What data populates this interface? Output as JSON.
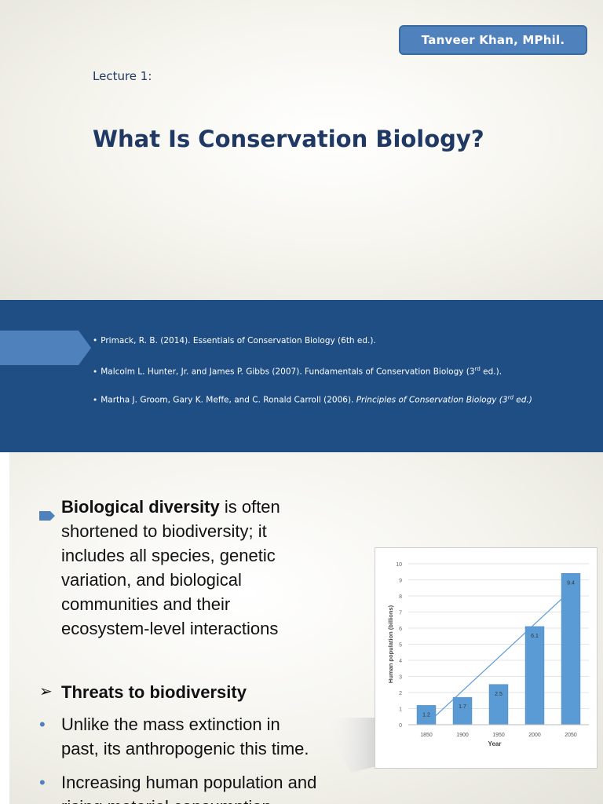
{
  "slide1": {
    "author": "Tanveer Khan, MPhil.",
    "lecture": "Lecture 1:",
    "title": "What Is Conservation Biology?"
  },
  "slide2": {
    "references": [
      {
        "bullet": "•",
        "text": "Primack, R. B. (2014). Essentials of Conservation Biology (6th ed.)."
      },
      {
        "bullet": "•",
        "text_before": "Malcolm L. Hunter, Jr. and James P. Gibbs (2007). Fundamentals of Conservation Biology (3",
        "sup": "rd",
        "text_after": " ed.)."
      },
      {
        "bullet": "•",
        "text_before": "Martha J. Groom, Gary K. Meffe, and C. Ronald Carroll (2006). ",
        "italic_before": "Principles of Conservation Biology  (3",
        "sup": "rd",
        "italic_after": " ed.)"
      }
    ]
  },
  "slide3": {
    "bullet1": {
      "bold": "Biological diversity",
      "lines": [
        " is often",
        "shortened to biodiversity; it",
        "includes all species, genetic",
        "variation, and biological",
        "communities and their",
        "ecosystem-level interactions"
      ]
    },
    "heading": {
      "marker": "➢",
      "text": "Threats to biodiversity"
    },
    "subbullets": [
      {
        "marker": "•",
        "lines": [
          "Unlike the mass extinction in",
          "past, its anthropogenic this time."
        ]
      },
      {
        "marker": "•",
        "lines": [
          "Increasing human population and",
          "rising material consumption"
        ]
      }
    ]
  },
  "chart_data": {
    "type": "bar",
    "categories": [
      "1850",
      "1900",
      "1950",
      "2000",
      "2050"
    ],
    "values": [
      1.2,
      1.7,
      2.5,
      6.1,
      9.4
    ],
    "data_labels": [
      "1.2",
      "1.7",
      "2.5",
      "6.1",
      "9.4"
    ],
    "xlabel": "Year",
    "ylabel": "Human population (billions)",
    "ylim": [
      0,
      10
    ],
    "yticks": [
      "0",
      "1",
      "2",
      "3",
      "4",
      "5",
      "6",
      "7",
      "8",
      "9",
      "10"
    ],
    "grid": true,
    "trendline": true,
    "bar_color": "#5b9bd5"
  }
}
